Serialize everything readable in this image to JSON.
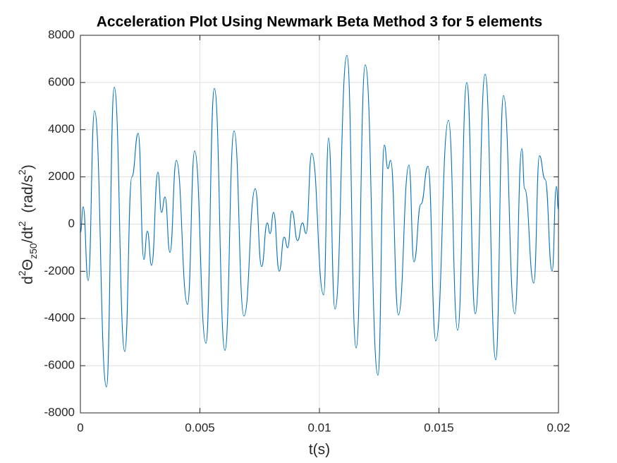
{
  "chart_data": {
    "type": "line",
    "title": "Acceleration Plot Using Newmark Beta Method 3 for 5 elements",
    "xlabel": "t(s)",
    "ylabel": [
      "d",
      "2",
      "Θ",
      "z50",
      "/dt",
      "2",
      "  (rad/s",
      "2",
      ")"
    ],
    "xlim": [
      0,
      0.02
    ],
    "xticks": [
      0,
      0.005,
      0.01,
      0.015,
      0.02
    ],
    "ylim": [
      -8000,
      8000
    ],
    "yticks": [
      -8000,
      -6000,
      -4000,
      -2000,
      0,
      2000,
      4000,
      6000,
      8000
    ],
    "grid": true,
    "x": [
      0,
      0.000118,
      0.000325,
      0.00059,
      0.001091,
      0.001416,
      0.001858,
      0.002153,
      0.002419,
      0.002655,
      0.002802,
      0.002979,
      0.003245,
      0.003392,
      0.00354,
      0.003746,
      0.004012,
      0.004484,
      0.004779,
      0.005251,
      0.005605,
      0.006047,
      0.006431,
      0.006844,
      0.007316,
      0.007581,
      0.007817,
      0.007935,
      0.008083,
      0.008319,
      0.008525,
      0.008673,
      0.00885,
      0.009086,
      0.009292,
      0.00944,
      0.009676,
      0.010177,
      0.010384,
      0.010649,
      0.011151,
      0.011535,
      0.011918,
      0.012449,
      0.012715,
      0.012862,
      0.01298,
      0.013304,
      0.013747,
      0.013953,
      0.014248,
      0.014543,
      0.014867,
      0.015398,
      0.015782,
      0.016166,
      0.01652,
      0.016933,
      0.017376,
      0.0177,
      0.018172,
      0.018467,
      0.018585,
      0.018968,
      0.019204,
      0.01944,
      0.019735,
      0.019912,
      0.02
    ],
    "series": [
      {
        "color": "#0072bd",
        "values": [
          -370,
          730,
          -2400,
          4800,
          -6900,
          5800,
          -5400,
          2000,
          3850,
          -1500,
          -300,
          -1750,
          2200,
          500,
          1150,
          -1200,
          2700,
          -3400,
          3100,
          -5050,
          5750,
          -5350,
          3950,
          -3900,
          1500,
          -1800,
          50,
          -400,
          500,
          -2000,
          -550,
          -1000,
          550,
          -700,
          50,
          -400,
          3000,
          -3000,
          3650,
          -3600,
          7150,
          -5250,
          6750,
          -6400,
          3350,
          2350,
          2700,
          -3850,
          2500,
          -1600,
          850,
          2450,
          -4950,
          4400,
          -4500,
          6000,
          -3800,
          6350,
          -5750,
          5450,
          -3800,
          3200,
          1500,
          -2500,
          2900,
          1900,
          -2000,
          1600,
          600
        ]
      }
    ]
  }
}
